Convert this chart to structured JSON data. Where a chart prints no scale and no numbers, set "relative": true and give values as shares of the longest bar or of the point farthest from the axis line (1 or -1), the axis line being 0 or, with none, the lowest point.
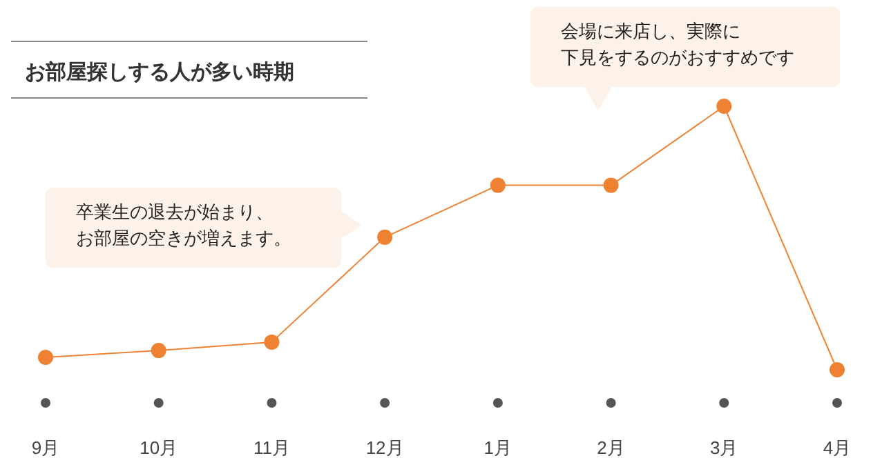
{
  "chart_data": {
    "type": "line",
    "title": "お部屋探しする人が多い時期",
    "categories": [
      "9月",
      "10月",
      "11月",
      "12月",
      "1月",
      "2月",
      "3月",
      "4月"
    ],
    "values": [
      0.047,
      0.073,
      0.105,
      0.503,
      0.7,
      0.7,
      1,
      0
    ],
    "color": "#ee8132",
    "relative": true,
    "marker": "circle",
    "legend": false,
    "annotations": [
      "卒業生の退去が始まり、お部屋の空きが増えます。",
      "会場に来店し、実際に下見をするのがおすすめです"
    ]
  }
}
